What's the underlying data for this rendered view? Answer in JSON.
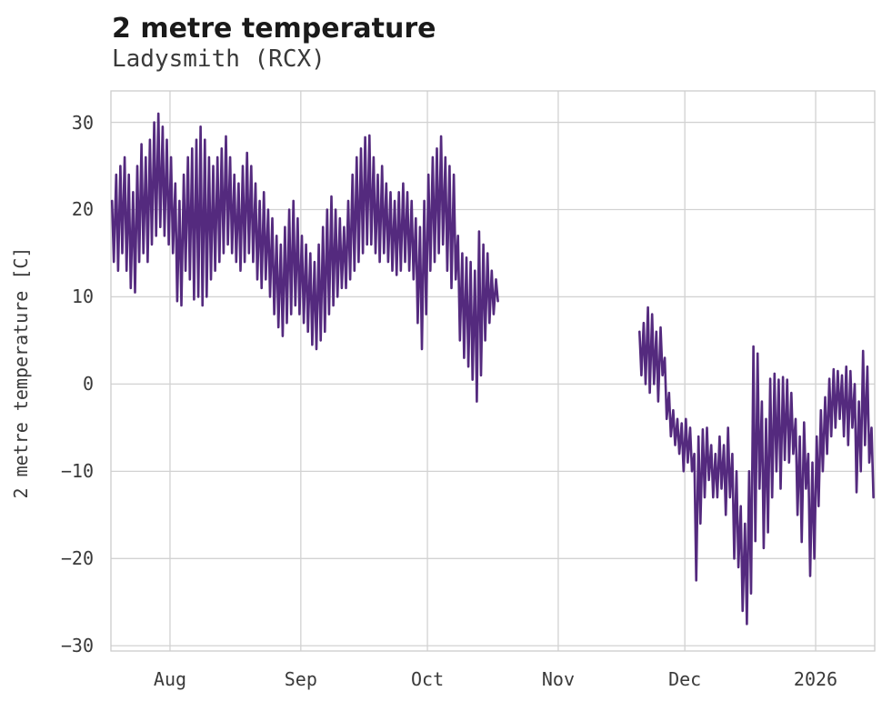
{
  "header": {
    "title": "2 metre temperature",
    "subtitle": "Ladysmith (RCX)"
  },
  "colors": {
    "line": "#542a7e",
    "grid": "#d2d2d2",
    "frame": "#cdcdcd",
    "title_text": "#1a1a1a",
    "tick_text": "#3a3a3a",
    "background": "#ffffff"
  },
  "chart_data": {
    "type": "line",
    "title": "2 metre temperature",
    "subtitle": "Ladysmith (RCX)",
    "ylabel": "2 metre temperature [C]",
    "xlabel": "",
    "grid": true,
    "legend": "none",
    "line_color": "#542a7e",
    "ylim": [
      -30.6,
      33.6
    ],
    "xlim_days": [
      0,
      181
    ],
    "x_unit": "days (day 0 = first sample, mid-July; two samples per day: daily max then daily min)",
    "y_ticks": [
      {
        "value": 30,
        "label": "30"
      },
      {
        "value": 20,
        "label": "20"
      },
      {
        "value": 10,
        "label": "10"
      },
      {
        "value": 0,
        "label": "0"
      },
      {
        "value": -10,
        "label": "−10"
      },
      {
        "value": -20,
        "label": "−20"
      },
      {
        "value": -30,
        "label": "−30"
      }
    ],
    "x_months": [
      {
        "label": "Aug",
        "day": 14
      },
      {
        "label": "Sep",
        "day": 45
      },
      {
        "label": "Oct",
        "day": 75
      },
      {
        "label": "Nov",
        "day": 106
      },
      {
        "label": "Dec",
        "day": 136
      },
      {
        "label": "2026",
        "day": 167
      }
    ],
    "series": [
      {
        "name": "observed-segment-1 (mid-Jul to mid-Oct)",
        "start_day": 0,
        "daily_min_max": [
          [
            14,
            21
          ],
          [
            13,
            24
          ],
          [
            15,
            25
          ],
          [
            13,
            26
          ],
          [
            11,
            24
          ],
          [
            10.5,
            22
          ],
          [
            14,
            25
          ],
          [
            15,
            27.5
          ],
          [
            14,
            26
          ],
          [
            16,
            28
          ],
          [
            17,
            30
          ],
          [
            18,
            31
          ],
          [
            17,
            29.5
          ],
          [
            16,
            28
          ],
          [
            15,
            26
          ],
          [
            9.5,
            23
          ],
          [
            9,
            21
          ],
          [
            13,
            24
          ],
          [
            12,
            26
          ],
          [
            9.7,
            27
          ],
          [
            10,
            28
          ],
          [
            9,
            29.5
          ],
          [
            10,
            28
          ],
          [
            12,
            26
          ],
          [
            13,
            25
          ],
          [
            14,
            26
          ],
          [
            15,
            27
          ],
          [
            16,
            28.4
          ],
          [
            15,
            26
          ],
          [
            14,
            24
          ],
          [
            13,
            23
          ],
          [
            14,
            25
          ],
          [
            15,
            26.5
          ],
          [
            14,
            25
          ],
          [
            12,
            23
          ],
          [
            11,
            21
          ],
          [
            12,
            22
          ],
          [
            10,
            20
          ],
          [
            8,
            19
          ],
          [
            6.5,
            17
          ],
          [
            5.5,
            16
          ],
          [
            7,
            18
          ],
          [
            8,
            20
          ],
          [
            9,
            21
          ],
          [
            8,
            19
          ],
          [
            7,
            17
          ],
          [
            6,
            16
          ],
          [
            4.5,
            15
          ],
          [
            4,
            14
          ],
          [
            5,
            16
          ],
          [
            6,
            18
          ],
          [
            8,
            20
          ],
          [
            9,
            21.5
          ],
          [
            10,
            20
          ],
          [
            11,
            19
          ],
          [
            11,
            18
          ],
          [
            12,
            21
          ],
          [
            13,
            24
          ],
          [
            14,
            26
          ],
          [
            15,
            27
          ],
          [
            16,
            28.3
          ],
          [
            16,
            28.5
          ],
          [
            15,
            26
          ],
          [
            14,
            24
          ],
          [
            15,
            25
          ],
          [
            14,
            23
          ],
          [
            13,
            22
          ],
          [
            12.5,
            21
          ],
          [
            13,
            22
          ],
          [
            14,
            23
          ],
          [
            13,
            22
          ],
          [
            12,
            21
          ],
          [
            7,
            19
          ],
          [
            4,
            18
          ],
          [
            8,
            21
          ],
          [
            13,
            24
          ],
          [
            14,
            26
          ],
          [
            15,
            27
          ],
          [
            16,
            28.4
          ],
          [
            13,
            26
          ],
          [
            11,
            25
          ],
          [
            12,
            24
          ],
          [
            5,
            17
          ],
          [
            3,
            15
          ],
          [
            2,
            14.5
          ],
          [
            0.5,
            14
          ],
          [
            -2,
            13
          ],
          [
            1,
            17.5
          ],
          [
            5,
            16
          ],
          [
            7,
            15
          ],
          [
            8,
            13
          ],
          [
            9.5,
            12
          ]
        ]
      },
      {
        "name": "observed-segment-2 (late-Nov to mid-Jan)",
        "start_day": 125,
        "daily_min_max": [
          [
            1,
            6
          ],
          [
            0,
            7
          ],
          [
            -1,
            8.8
          ],
          [
            0,
            8
          ],
          [
            -2,
            6
          ],
          [
            1,
            6.5
          ],
          [
            -4,
            3
          ],
          [
            -6,
            -1
          ],
          [
            -7,
            -3
          ],
          [
            -8,
            -4
          ],
          [
            -10,
            -4.5
          ],
          [
            -9,
            -4
          ],
          [
            -10,
            -5
          ],
          [
            -22.5,
            -8
          ],
          [
            -16,
            -6
          ],
          [
            -13,
            -5.2
          ],
          [
            -11,
            -5
          ],
          [
            -13,
            -7
          ],
          [
            -13,
            -8
          ],
          [
            -12,
            -6
          ],
          [
            -15,
            -7
          ],
          [
            -13,
            -5
          ],
          [
            -20,
            -8
          ],
          [
            -21,
            -10
          ],
          [
            -26,
            -14
          ],
          [
            -27.5,
            -16
          ],
          [
            -24,
            -10
          ],
          [
            -18,
            4.3
          ],
          [
            -12,
            3.5
          ],
          [
            -18.8,
            -2
          ],
          [
            -17,
            -4
          ],
          [
            -13,
            0.6
          ],
          [
            -10,
            1.2
          ],
          [
            -12,
            0.5
          ],
          [
            -8.7,
            0.8
          ],
          [
            -9,
            0.5
          ],
          [
            -8,
            -1
          ],
          [
            -15,
            -4
          ],
          [
            -18.1,
            -6
          ],
          [
            -12,
            -4.4
          ],
          [
            -22,
            -8
          ],
          [
            -20,
            -9
          ],
          [
            -14,
            -6
          ],
          [
            -10,
            -3
          ],
          [
            -8,
            -1.5
          ],
          [
            -6,
            0.6
          ],
          [
            -5,
            1.7
          ],
          [
            -4,
            1.5
          ],
          [
            -6,
            1
          ],
          [
            -7,
            2
          ],
          [
            -5,
            1.5
          ],
          [
            -12.4,
            0
          ],
          [
            -10,
            -2
          ],
          [
            -7,
            3.8
          ],
          [
            -9,
            2
          ],
          [
            -13,
            -5
          ]
        ]
      }
    ]
  }
}
